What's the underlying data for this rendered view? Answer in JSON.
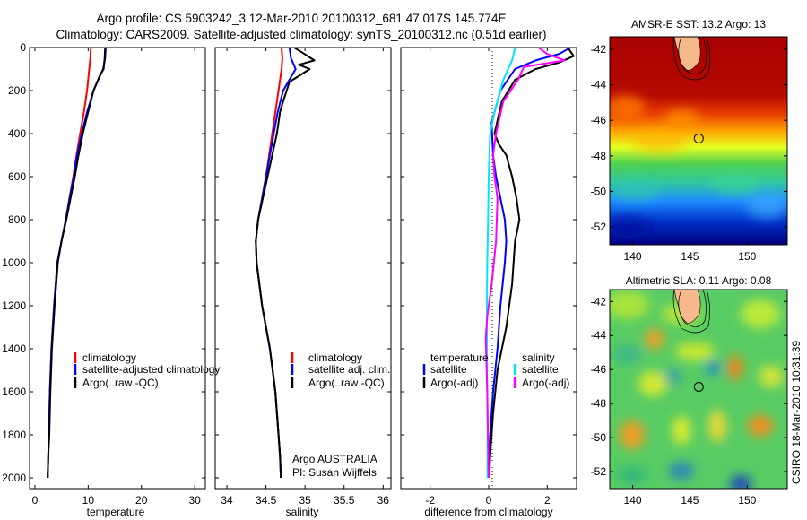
{
  "header": {
    "title_line1": "Argo profile: CS 5903242_3 12-Mar-2010 20100312_681 47.017S 145.774E",
    "title_line2": "Climatology: CARS2009. Satellite-adjusted climatology: synTS_20100312.nc (0.51d earlier)"
  },
  "footer": {
    "credit": "CSIRO 18-Mar-2010 10:31:39"
  },
  "colors": {
    "climatology": "#ff0000",
    "satellite": "#0000ff",
    "argo": "#000000",
    "satellite_salinity": "#00e5ff",
    "argo_salinity": "#ff00ff",
    "land": "#f7b88c"
  },
  "chart_data": [
    {
      "type": "line",
      "id": "temperature",
      "xlabel": "temperature",
      "ylabel": "",
      "xlim": [
        -1,
        32
      ],
      "ylim": [
        2050,
        0
      ],
      "xticks": [
        0,
        10,
        20,
        30
      ],
      "xtick_labels": [
        "0",
        "10",
        "20",
        "30"
      ],
      "yticks": [
        0,
        200,
        400,
        600,
        800,
        1000,
        1200,
        1400,
        1600,
        1800,
        2000
      ],
      "ytick_labels": [
        "0",
        "200",
        "400",
        "600",
        "800",
        "1000",
        "1200",
        "1400",
        "1600",
        "1800",
        "2000"
      ],
      "legend": [
        "climatology",
        "satellite-adjusted climatology",
        "Argo(..raw -QC)"
      ],
      "legend_position": "lower-right",
      "series": [
        {
          "name": "climatology",
          "color": "#ff0000",
          "x": [
            10.5,
            10.4,
            10.2,
            9.8,
            9.2,
            8.5,
            7.8,
            7.2,
            6.5,
            5.8,
            5.0,
            4.2,
            3.6,
            3.1,
            2.8,
            2.6,
            2.5,
            2.4
          ],
          "y": [
            0,
            50,
            100,
            200,
            300,
            400,
            500,
            600,
            700,
            800,
            900,
            1000,
            1200,
            1400,
            1600,
            1800,
            1900,
            2000
          ]
        },
        {
          "name": "satellite-adjusted climatology",
          "color": "#0000ff",
          "x": [
            13.3,
            13.2,
            12.8,
            11.0,
            9.8,
            8.8,
            7.9,
            7.3,
            6.5,
            5.8,
            5.0,
            4.2,
            3.6,
            3.1,
            2.8,
            2.6,
            2.5,
            2.4
          ],
          "y": [
            0,
            50,
            100,
            200,
            300,
            400,
            500,
            600,
            700,
            800,
            900,
            1000,
            1200,
            1400,
            1600,
            1800,
            1900,
            2000
          ]
        },
        {
          "name": "Argo(..raw -QC)",
          "color": "#000000",
          "x": [
            13.2,
            13.1,
            12.9,
            12.2,
            11.0,
            10.0,
            9.0,
            8.2,
            7.5,
            6.7,
            5.9,
            5.0,
            4.3,
            3.7,
            3.2,
            2.9,
            2.7,
            2.5,
            2.4
          ],
          "y": [
            0,
            50,
            100,
            130,
            200,
            300,
            400,
            500,
            600,
            700,
            800,
            900,
            1000,
            1200,
            1400,
            1600,
            1800,
            1900,
            2000
          ]
        }
      ]
    },
    {
      "type": "line",
      "id": "salinity",
      "xlabel": "salinity",
      "ylabel": "",
      "xlim": [
        33.85,
        36.1
      ],
      "ylim": [
        2050,
        0
      ],
      "xticks": [
        34,
        34.5,
        35,
        35.5,
        36
      ],
      "xtick_labels": [
        "34",
        "34.5",
        "35",
        "35.5",
        "36"
      ],
      "legend": [
        "climatology",
        "satellite adj. clim.",
        "Argo(..raw -QC)"
      ],
      "legend_position": "lower-right",
      "annotations": [
        "Argo AUSTRALIA",
        "PI: Susan Wijffels"
      ],
      "series": [
        {
          "name": "climatology",
          "color": "#ff0000",
          "x": [
            34.7,
            34.71,
            34.7,
            34.66,
            34.62,
            34.58,
            34.54,
            34.5,
            34.45,
            34.4,
            34.37,
            34.38,
            34.45,
            34.55,
            34.62,
            34.66,
            34.68,
            34.69
          ],
          "y": [
            0,
            50,
            100,
            200,
            300,
            400,
            500,
            600,
            700,
            800,
            900,
            1000,
            1200,
            1400,
            1600,
            1800,
            1900,
            2000
          ]
        },
        {
          "name": "satellite adj. clim.",
          "color": "#0000ff",
          "x": [
            34.8,
            34.82,
            34.88,
            34.72,
            34.65,
            34.6,
            34.55,
            34.5,
            34.45,
            34.4,
            34.37,
            34.38,
            34.45,
            34.55,
            34.62,
            34.66,
            34.68,
            34.69
          ],
          "y": [
            0,
            50,
            100,
            200,
            300,
            400,
            500,
            600,
            700,
            800,
            900,
            1000,
            1200,
            1400,
            1600,
            1800,
            1900,
            2000
          ]
        },
        {
          "name": "Argo(..raw -QC)",
          "color": "#000000",
          "x": [
            34.86,
            34.95,
            35.12,
            34.92,
            35.06,
            34.8,
            34.72,
            34.68,
            34.64,
            34.58,
            34.52,
            34.46,
            34.4,
            34.37,
            34.38,
            34.45,
            34.55,
            34.62,
            34.66,
            34.68,
            34.69
          ],
          "y": [
            0,
            20,
            60,
            80,
            100,
            160,
            250,
            300,
            400,
            500,
            600,
            700,
            800,
            900,
            1000,
            1200,
            1400,
            1600,
            1800,
            1900,
            2000
          ]
        }
      ]
    },
    {
      "type": "line",
      "id": "difference",
      "xlabel": "difference from climatology",
      "ylabel": "",
      "xlim": [
        -3,
        3
      ],
      "ylim": [
        2050,
        0
      ],
      "xticks": [
        -2,
        0,
        2
      ],
      "xtick_labels": [
        "-2",
        "0",
        "2"
      ],
      "legend_groups": [
        {
          "heading": "temperature",
          "entries": [
            "satellite",
            "Argo(-adj)"
          ]
        },
        {
          "heading": "salinity",
          "entries": [
            "satellite",
            "Argo(-adj)"
          ]
        }
      ],
      "legend_position": "lower-right",
      "series": [
        {
          "name": "satellite",
          "group": "temperature",
          "color": "#0000ff",
          "x": [
            2.8,
            2.4,
            1.6,
            0.9,
            0.4,
            0.1,
            0.15,
            0.25,
            0.4,
            0.55,
            0.6,
            0.55,
            0.4,
            0.3,
            0.15,
            0.05,
            0.0,
            0.0
          ],
          "y": [
            0,
            30,
            60,
            100,
            200,
            350,
            500,
            600,
            700,
            800,
            900,
            1000,
            1200,
            1400,
            1600,
            1800,
            1900,
            2000
          ]
        },
        {
          "name": "Argo(-adj)",
          "group": "temperature",
          "color": "#000000",
          "x": [
            2.7,
            2.9,
            2.4,
            1.6,
            0.9,
            0.45,
            0.2,
            0.35,
            0.6,
            0.8,
            0.95,
            1.05,
            0.9,
            0.8,
            0.6,
            0.3,
            0.15,
            0.05,
            0.02
          ],
          "y": [
            0,
            40,
            70,
            100,
            150,
            250,
            400,
            450,
            500,
            600,
            700,
            800,
            900,
            1100,
            1300,
            1500,
            1700,
            1900,
            2000
          ]
        },
        {
          "name": "satellite",
          "group": "salinity",
          "color": "#00e5ff",
          "x": [
            0.9,
            0.8,
            0.5,
            0.2,
            0.05,
            0.0,
            -0.02,
            -0.05,
            -0.06,
            -0.06,
            -0.05,
            -0.04,
            -0.04,
            -0.04
          ],
          "y": [
            0,
            60,
            150,
            300,
            400,
            600,
            800,
            1000,
            1200,
            1400,
            1600,
            1800,
            1900,
            2000
          ]
        },
        {
          "name": "Argo(-adj)",
          "group": "salinity",
          "color": "#ff00ff",
          "x": [
            1.7,
            2.0,
            2.6,
            1.2,
            1.0,
            0.5,
            0.25,
            0.15,
            0.2,
            0.3,
            0.25,
            0.1,
            -0.05,
            -0.1,
            -0.05,
            0.0
          ],
          "y": [
            0,
            30,
            60,
            90,
            150,
            250,
            400,
            500,
            600,
            700,
            900,
            1100,
            1250,
            1350,
            1600,
            2000
          ]
        }
      ]
    },
    {
      "type": "heatmap",
      "id": "sst-map",
      "title": "AMSR-E SST: 13.2 Argo: 13",
      "xlim": [
        138,
        153.5
      ],
      "ylim": [
        -53,
        -41.3
      ],
      "xticks": [
        140,
        145,
        150
      ],
      "xtick_labels": [
        "140",
        "145",
        "150"
      ],
      "yticks": [
        -42,
        -44,
        -46,
        -48,
        -50,
        -52
      ],
      "ytick_labels": [
        "-42",
        "-44",
        "-46",
        "-48",
        "-50",
        "-52"
      ],
      "argo_marker": {
        "lon": 145.774,
        "lat": -47.017
      }
    },
    {
      "type": "heatmap",
      "id": "sla-map",
      "title": "Altimetric SLA: 0.11 Argo: 0.08",
      "xlim": [
        138,
        153.5
      ],
      "ylim": [
        -53,
        -41.3
      ],
      "xticks": [
        140,
        145,
        150
      ],
      "xtick_labels": [
        "140",
        "145",
        "150"
      ],
      "yticks": [
        -42,
        -44,
        -46,
        -48,
        -50,
        -52
      ],
      "ytick_labels": [
        "-42",
        "-44",
        "-46",
        "-48",
        "-50",
        "-52"
      ],
      "argo_marker": {
        "lon": 145.774,
        "lat": -47.017
      }
    }
  ]
}
